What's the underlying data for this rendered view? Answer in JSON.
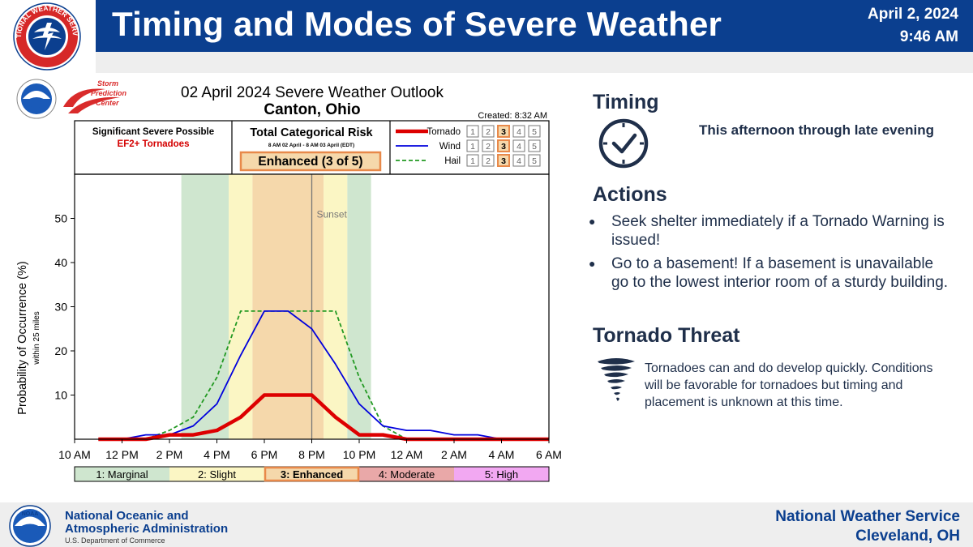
{
  "header": {
    "title": "Timing and Modes of Severe Weather",
    "date": "April 2, 2024",
    "time": "9:46 AM",
    "logo_icon": "nws-logo-icon",
    "logo_text": "NATIONAL WEATHER SERVICE"
  },
  "outlook": {
    "title": "02 April 2024 Severe Weather Outlook",
    "location": "Canton, Ohio",
    "created": "Created: 8:32 AM",
    "spc_logo": "spc-logo",
    "spc_text": [
      "Storm",
      "Prediction",
      "Center"
    ],
    "significant_title": "Significant Severe Possible",
    "significant_detail": "EF2+ Tornadoes",
    "risk_title": "Total Categorical Risk",
    "risk_period": "8 AM 02 April - 8 AM 03 April (EDT)",
    "risk_value": "Enhanced (3 of 5)",
    "hazard_legend": [
      {
        "name": "Tornado",
        "color": "#dd0000",
        "style": "thick",
        "level": 3
      },
      {
        "name": "Wind",
        "color": "#0000dd",
        "style": "solid",
        "level": 3
      },
      {
        "name": "Hail",
        "color": "#229922",
        "style": "dashed",
        "level": 3
      }
    ],
    "level_numbers": [
      "1",
      "2",
      "3",
      "4",
      "5"
    ]
  },
  "chart_data": {
    "type": "line",
    "ylabel": "Probability of Occurrence (%)",
    "ylabel_sub": "within 25 miles",
    "ylim": [
      0,
      60
    ],
    "yticks": [
      10,
      20,
      30,
      40,
      50
    ],
    "xlim": [
      10,
      30
    ],
    "xticks": [
      {
        "x": 10,
        "label": "10 AM"
      },
      {
        "x": 12,
        "label": "12 PM"
      },
      {
        "x": 14,
        "label": "2 PM"
      },
      {
        "x": 16,
        "label": "4 PM"
      },
      {
        "x": 18,
        "label": "6 PM"
      },
      {
        "x": 20,
        "label": "8 PM"
      },
      {
        "x": 22,
        "label": "10 PM"
      },
      {
        "x": 24,
        "label": "12 AM"
      },
      {
        "x": 26,
        "label": "2 AM"
      },
      {
        "x": 28,
        "label": "4 AM"
      },
      {
        "x": 30,
        "label": "6 AM"
      }
    ],
    "sunset": {
      "x": 20,
      "label": "Sunset"
    },
    "risk_bands": [
      {
        "from": 14.5,
        "to": 16.5,
        "level": "marginal",
        "color": "#cfe6cf"
      },
      {
        "from": 16.5,
        "to": 17.5,
        "level": "slight",
        "color": "#fbf6c4"
      },
      {
        "from": 17.5,
        "to": 20.5,
        "level": "enhanced",
        "color": "#f5d8ab"
      },
      {
        "from": 20.5,
        "to": 21.5,
        "level": "slight",
        "color": "#fbf6c4"
      },
      {
        "from": 21.5,
        "to": 22.5,
        "level": "marginal",
        "color": "#cfe6cf"
      }
    ],
    "series": [
      {
        "name": "Tornado",
        "color": "#dd0000",
        "style": "thick",
        "x": [
          11,
          12,
          13,
          14,
          15,
          16,
          17,
          18,
          19,
          20,
          21,
          22,
          23,
          24,
          25,
          26,
          27,
          28,
          29,
          30
        ],
        "y": [
          0,
          0,
          0,
          1,
          1,
          2,
          5,
          10,
          10,
          10,
          5,
          1,
          1,
          0,
          0,
          0,
          0,
          0,
          0,
          0
        ]
      },
      {
        "name": "Wind",
        "color": "#0000dd",
        "style": "solid",
        "x": [
          11,
          12,
          13,
          14,
          15,
          16,
          17,
          18,
          19,
          20,
          21,
          22,
          23,
          24,
          25,
          26,
          27,
          28,
          29,
          30
        ],
        "y": [
          0,
          0,
          1,
          1,
          3,
          8,
          19,
          29,
          29,
          25,
          17,
          8,
          3,
          2,
          2,
          1,
          1,
          0,
          0,
          0
        ]
      },
      {
        "name": "Hail",
        "color": "#229922",
        "style": "dashed",
        "x": [
          11,
          12,
          13,
          14,
          15,
          16,
          17,
          18,
          19,
          20,
          21,
          22,
          23,
          24
        ],
        "y": [
          0,
          0,
          0,
          2,
          5,
          14,
          29,
          29,
          29,
          29,
          29,
          14,
          3,
          0
        ]
      }
    ],
    "category_bar": [
      {
        "label": "1: Marginal",
        "color": "#cfe6cf"
      },
      {
        "label": "2: Slight",
        "color": "#fbf6c4"
      },
      {
        "label": "3: Enhanced",
        "color": "#f5d8ab",
        "current": true
      },
      {
        "label": "4: Moderate",
        "color": "#e9a8a8"
      },
      {
        "label": "5: High",
        "color": "#f2a8f2"
      }
    ],
    "grid": false
  },
  "timing": {
    "heading": "Timing",
    "text": "This afternoon through late evening",
    "icon": "clock-icon"
  },
  "actions": {
    "heading": "Actions",
    "items": [
      "Seek shelter immediately if a Tornado Warning is issued!",
      "Go to a basement! If a basement is unavailable go to the lowest interior room of a sturdy building."
    ]
  },
  "tornado_threat": {
    "heading": "Tornado Threat",
    "text": "Tornadoes can and do develop quickly. Conditions will be favorable for tornadoes but timing and placement is unknown at this time.",
    "icon": "tornado-icon"
  },
  "footer": {
    "org_line1": "National Oceanic and",
    "org_line2": "Atmospheric Administration",
    "dept": "U.S. Department of Commerce",
    "office_line1": "National Weather Service",
    "office_line2": "Cleveland, OH",
    "logo_icon": "noaa-logo-icon"
  },
  "colors": {
    "brand_blue": "#0b3f8f",
    "text_navy": "#1f2f4a",
    "highlight_orange": "#e8894a"
  }
}
